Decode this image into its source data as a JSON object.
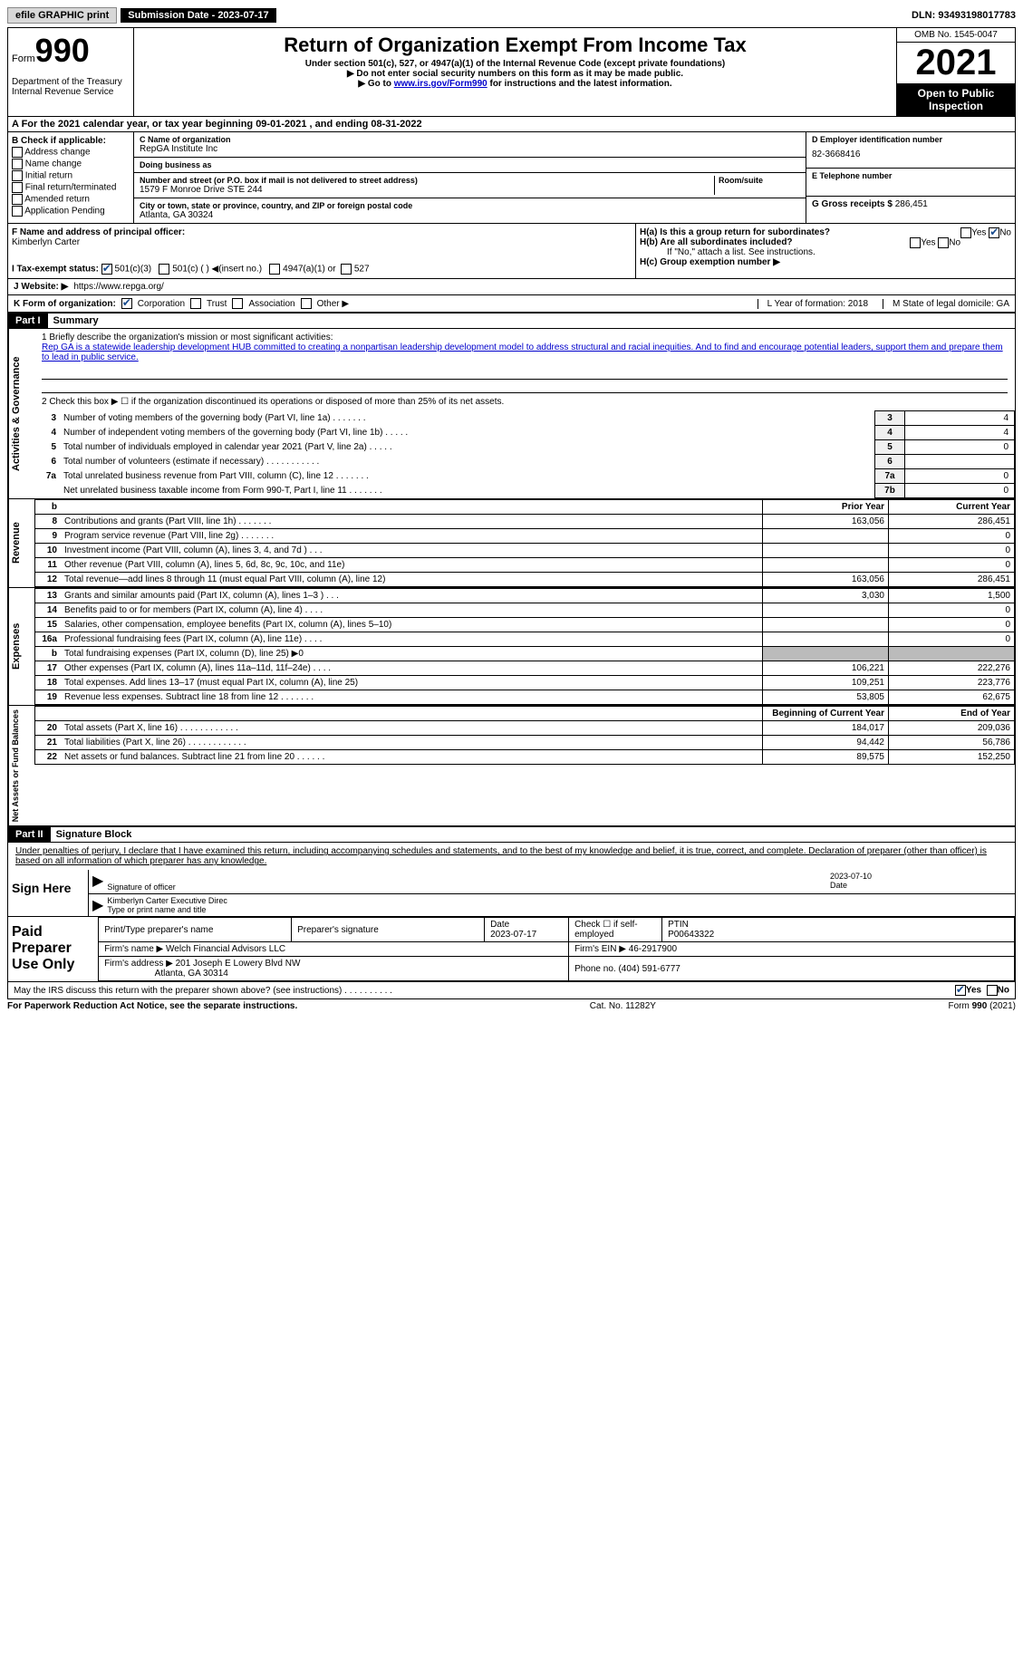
{
  "topbar": {
    "efile_btn": "efile GRAPHIC print",
    "submission": "Submission Date - 2023-07-17",
    "dln": "DLN: 93493198017783"
  },
  "header": {
    "form_word": "Form",
    "form_num": "990",
    "title": "Return of Organization Exempt From Income Tax",
    "subtitle1": "Under section 501(c), 527, or 4947(a)(1) of the Internal Revenue Code (except private foundations)",
    "subtitle2": "▶ Do not enter social security numbers on this form as it may be made public.",
    "subtitle3_pre": "▶ Go to ",
    "subtitle3_link": "www.irs.gov/Form990",
    "subtitle3_post": " for instructions and the latest information.",
    "dept": "Department of the Treasury\nInternal Revenue Service",
    "omb": "OMB No. 1545-0047",
    "year": "2021",
    "open": "Open to Public Inspection"
  },
  "row_a": "A For the 2021 calendar year, or tax year beginning 09-01-2021    , and ending 08-31-2022",
  "col_b": {
    "header": "B Check if applicable:",
    "opts": [
      "Address change",
      "Name change",
      "Initial return",
      "Final return/terminated",
      "Amended return",
      "Application Pending"
    ]
  },
  "org": {
    "c_label": "C Name of organization",
    "c_name": "RepGA Institute Inc",
    "dba": "Doing business as",
    "addr_label": "Number and street (or P.O. box if mail is not delivered to street address)",
    "addr": "1579 F Monroe Drive STE 244",
    "room": "Room/suite",
    "city_label": "City or town, state or province, country, and ZIP or foreign postal code",
    "city": "Atlanta, GA  30324"
  },
  "col_d": {
    "d_label": "D Employer identification number",
    "d_val": "82-3668416",
    "e_label": "E Telephone number",
    "g_label": "G Gross receipts $",
    "g_val": "286,451"
  },
  "f": {
    "label": "F  Name and address of principal officer:",
    "name": "Kimberlyn Carter"
  },
  "h": {
    "a": "H(a)  Is this a group return for subordinates?",
    "b": "H(b)  Are all subordinates included?",
    "b_note": "If \"No,\" attach a list. See instructions.",
    "c": "H(c)  Group exemption number ▶",
    "yes": "Yes",
    "no": "No"
  },
  "i": {
    "label": "I    Tax-exempt status:",
    "opts": [
      "501(c)(3)",
      "501(c) (  ) ◀(insert no.)",
      "4947(a)(1) or",
      "527"
    ]
  },
  "j": {
    "label": "J   Website: ▶",
    "val": "https://www.repga.org/"
  },
  "k": {
    "label": "K Form of organization:",
    "opts": [
      "Corporation",
      "Trust",
      "Association",
      "Other ▶"
    ],
    "l": "L Year of formation: 2018",
    "m": "M State of legal domicile: GA"
  },
  "part1": {
    "header": "Part I",
    "title": "Summary",
    "line1_label": "1   Briefly describe the organization's mission or most significant activities:",
    "line1_text": "Rep GA is a statewide leadership development HUB committed to creating a nonpartisan leadership development model to address structural and racial inequities. And to find and encourage potential leaders, support them and prepare them to lead in public service.",
    "line2": "2   Check this box ▶ ☐  if the organization discontinued its operations or disposed of more than 25% of its net assets.",
    "sidebar1": "Activities & Governance",
    "sidebar2": "Revenue",
    "sidebar3": "Expenses",
    "sidebar4": "Net Assets or Fund Balances",
    "gov_rows": [
      {
        "n": "3",
        "d": "Number of voting members of the governing body (Part VI, line 1a)  .    .    .    .    .    .    .",
        "box": "3",
        "v": "4"
      },
      {
        "n": "4",
        "d": "Number of independent voting members of the governing body (Part VI, line 1b)  .    .    .    .    .",
        "box": "4",
        "v": "4"
      },
      {
        "n": "5",
        "d": "Total number of individuals employed in calendar year 2021 (Part V, line 2a)  .    .    .    .    .",
        "box": "5",
        "v": "0"
      },
      {
        "n": "6",
        "d": "Total number of volunteers (estimate if necessary)    .    .    .    .    .    .    .    .    .    .    .",
        "box": "6",
        "v": ""
      },
      {
        "n": "7a",
        "d": "Total unrelated business revenue from Part VIII, column (C), line 12   .    .    .    .    .    .    .",
        "box": "7a",
        "v": "0"
      },
      {
        "n": "",
        "d": "Net unrelated business taxable income from Form 990-T, Part I, line 11  .    .    .    .    .    .    .",
        "box": "7b",
        "v": "0"
      }
    ],
    "col_headers": {
      "b": "b",
      "prior": "Prior Year",
      "current": "Current Year"
    },
    "rev_rows": [
      {
        "n": "8",
        "d": "Contributions and grants (Part VIII, line 1h)  .    .    .    .    .    .    .",
        "p": "163,056",
        "c": "286,451"
      },
      {
        "n": "9",
        "d": "Program service revenue (Part VIII, line 2g)  .    .    .    .    .    .    .",
        "p": "",
        "c": "0"
      },
      {
        "n": "10",
        "d": "Investment income (Part VIII, column (A), lines 3, 4, and 7d )  .    .    .",
        "p": "",
        "c": "0"
      },
      {
        "n": "11",
        "d": "Other revenue (Part VIII, column (A), lines 5, 6d, 8c, 9c, 10c, and 11e)",
        "p": "",
        "c": "0"
      },
      {
        "n": "12",
        "d": "Total revenue—add lines 8 through 11 (must equal Part VIII, column (A), line 12)",
        "p": "163,056",
        "c": "286,451"
      }
    ],
    "exp_rows": [
      {
        "n": "13",
        "d": "Grants and similar amounts paid (Part IX, column (A), lines 1–3 )  .    .    .",
        "p": "3,030",
        "c": "1,500"
      },
      {
        "n": "14",
        "d": "Benefits paid to or for members (Part IX, column (A), line 4)  .    .    .    .",
        "p": "",
        "c": "0"
      },
      {
        "n": "15",
        "d": "Salaries, other compensation, employee benefits (Part IX, column (A), lines 5–10)",
        "p": "",
        "c": "0"
      },
      {
        "n": "16a",
        "d": "Professional fundraising fees (Part IX, column (A), line 11e)  .    .    .    .",
        "p": "",
        "c": "0"
      },
      {
        "n": "b",
        "d": "Total fundraising expenses (Part IX, column (D), line 25) ▶0",
        "p": "SHADED",
        "c": "SHADED"
      },
      {
        "n": "17",
        "d": "Other expenses (Part IX, column (A), lines 11a–11d, 11f–24e)  .    .    .    .",
        "p": "106,221",
        "c": "222,276"
      },
      {
        "n": "18",
        "d": "Total expenses. Add lines 13–17 (must equal Part IX, column (A), line 25)",
        "p": "109,251",
        "c": "223,776"
      },
      {
        "n": "19",
        "d": "Revenue less expenses. Subtract line 18 from line 12  .    .    .    .    .    .    .",
        "p": "53,805",
        "c": "62,675"
      }
    ],
    "net_headers": {
      "beg": "Beginning of Current Year",
      "end": "End of Year"
    },
    "net_rows": [
      {
        "n": "20",
        "d": "Total assets (Part X, line 16)  .    .    .    .    .    .    .    .    .    .    .    .",
        "p": "184,017",
        "c": "209,036"
      },
      {
        "n": "21",
        "d": "Total liabilities (Part X, line 26)  .    .    .    .    .    .    .    .    .    .    .    .",
        "p": "94,442",
        "c": "56,786"
      },
      {
        "n": "22",
        "d": "Net assets or fund balances. Subtract line 21 from line 20  .    .    .    .    .    .",
        "p": "89,575",
        "c": "152,250"
      }
    ]
  },
  "part2": {
    "header": "Part II",
    "title": "Signature Block",
    "declaration": "Under penalties of perjury, I declare that I have examined this return, including accompanying schedules and statements, and to the best of my knowledge and belief, it is true, correct, and complete. Declaration of preparer (other than officer) is based on all information of which preparer has any knowledge.",
    "sign_here": "Sign Here",
    "sig_officer": "Signature of officer",
    "sig_date": "2023-07-10",
    "date_label": "Date",
    "officer_name": "Kimberlyn Carter  Executive Direc",
    "type_name": "Type or print name and title",
    "paid": "Paid Preparer Use Only",
    "prep_name_label": "Print/Type preparer's name",
    "prep_sig_label": "Preparer's signature",
    "prep_date_label": "Date",
    "prep_date": "2023-07-17",
    "check_self": "Check ☐ if self-employed",
    "ptin_label": "PTIN",
    "ptin": "P00643322",
    "firm_name_label": "Firm's name    ▶",
    "firm_name": "Welch Financial Advisors LLC",
    "firm_ein_label": "Firm's EIN ▶",
    "firm_ein": "46-2917900",
    "firm_addr_label": "Firm's address ▶",
    "firm_addr1": "201 Joseph E Lowery Blvd NW",
    "firm_addr2": "Atlanta, GA  30314",
    "phone_label": "Phone no.",
    "phone": "(404) 591-6777",
    "discuss": "May the IRS discuss this return with the preparer shown above? (see instructions)   .    .    .    .    .    .    .    .    .    ."
  },
  "footer": {
    "left": "For Paperwork Reduction Act Notice, see the separate instructions.",
    "center": "Cat. No. 11282Y",
    "right": "Form 990 (2021)"
  }
}
